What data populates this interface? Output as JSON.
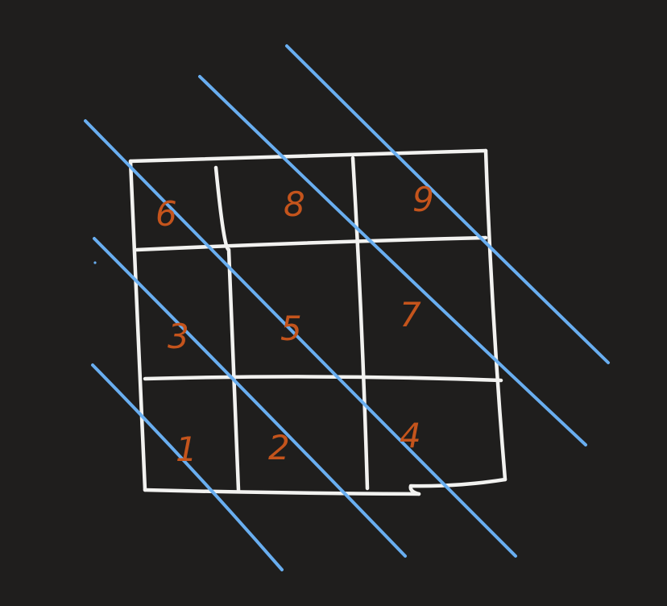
{
  "diagram": {
    "title": "3x3 grid with diagonal lines",
    "colors": {
      "background": "#1f1e1d",
      "grid": "#f2f2f0",
      "diagonals": "#69aef0",
      "numbers": "#c4541c"
    },
    "cells": [
      {
        "row": 0,
        "col": 0,
        "label": "6"
      },
      {
        "row": 0,
        "col": 1,
        "label": "8"
      },
      {
        "row": 0,
        "col": 2,
        "label": "9"
      },
      {
        "row": 1,
        "col": 0,
        "label": "3"
      },
      {
        "row": 1,
        "col": 1,
        "label": "5"
      },
      {
        "row": 1,
        "col": 2,
        "label": "7"
      },
      {
        "row": 2,
        "col": 0,
        "label": "1"
      },
      {
        "row": 2,
        "col": 1,
        "label": "2"
      },
      {
        "row": 2,
        "col": 2,
        "label": "4"
      }
    ],
    "diagonal_count": 5
  }
}
